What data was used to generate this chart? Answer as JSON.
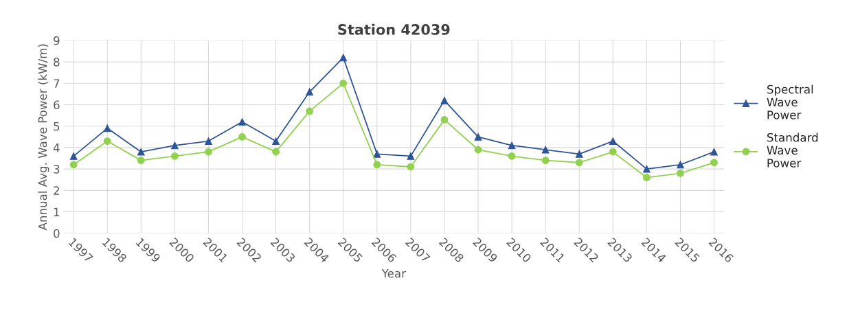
{
  "chart_data": {
    "type": "line",
    "title": "Station 42039",
    "xlabel": "Year",
    "ylabel": "Annual Avg. Wave Power (kW/m)",
    "categories": [
      "1997",
      "1998",
      "1999",
      "2000",
      "2001",
      "2002",
      "2003",
      "2004",
      "2005",
      "2006",
      "2007",
      "2008",
      "2009",
      "2010",
      "2011",
      "2012",
      "2013",
      "2014",
      "2015",
      "2016"
    ],
    "series": [
      {
        "name": "Spectral Wave Power",
        "color": "#2f5597",
        "marker": "triangle",
        "values": [
          3.6,
          4.9,
          3.8,
          4.1,
          4.3,
          5.2,
          4.3,
          6.6,
          8.2,
          3.7,
          3.6,
          6.2,
          4.5,
          4.1,
          3.9,
          3.7,
          4.3,
          3.0,
          3.2,
          3.8
        ]
      },
      {
        "name": "Standard Wave Power",
        "color": "#92d050",
        "marker": "circle",
        "values": [
          3.2,
          4.3,
          3.4,
          3.6,
          3.8,
          4.5,
          3.8,
          5.7,
          7.0,
          3.2,
          3.1,
          5.3,
          3.9,
          3.6,
          3.4,
          3.3,
          3.8,
          2.6,
          2.8,
          3.3
        ]
      }
    ],
    "ylim": [
      0,
      9
    ],
    "yticks": [
      0,
      1,
      2,
      3,
      4,
      5,
      6,
      7,
      8,
      9
    ],
    "grid": true,
    "legend": "right"
  }
}
